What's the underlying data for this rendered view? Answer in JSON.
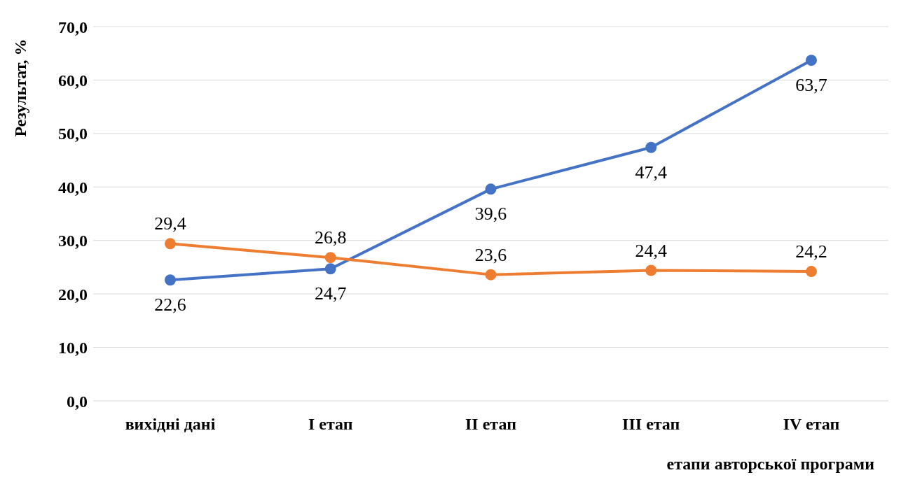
{
  "chart_data": {
    "type": "line",
    "ylabel": "Результат, %",
    "xlabel": "етапи авторської програми",
    "categories": [
      "вихідні дані",
      "І етап",
      "ІІ етап",
      "ІІІ етап",
      "ІV етап"
    ],
    "series": [
      {
        "color": "#4472c4",
        "values": [
          22.6,
          24.7,
          39.6,
          47.4,
          63.7
        ],
        "value_labels": [
          "22,6",
          "24,7",
          "39,6",
          "47,4",
          "63,7"
        ]
      },
      {
        "color": "#ed7d31",
        "values": [
          29.4,
          26.8,
          23.6,
          24.4,
          24.2
        ],
        "value_labels": [
          "29,4",
          "26,8",
          "23,6",
          "24,4",
          "24,2"
        ]
      }
    ],
    "ylim": [
      0,
      70
    ],
    "yticks": [
      {
        "value": 0,
        "label": "0,0"
      },
      {
        "value": 10,
        "label": "10,0"
      },
      {
        "value": 20,
        "label": "20,0"
      },
      {
        "value": 30,
        "label": "30,0"
      },
      {
        "value": 40,
        "label": "40,0"
      },
      {
        "value": 50,
        "label": "50,0"
      },
      {
        "value": 60,
        "label": "60,0"
      },
      {
        "value": 70,
        "label": "70,0"
      }
    ],
    "grid": "y",
    "marker": "circle",
    "line_style": "solid"
  }
}
